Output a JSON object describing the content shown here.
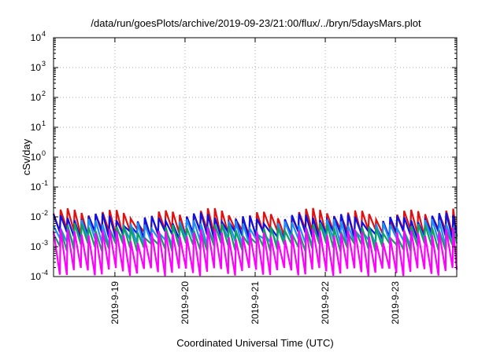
{
  "chart_data": {
    "type": "line",
    "title": "/data/run/goesPlots/archive/2019-09-23/21:00/flux/../bryn/5daysMars.plot",
    "xlabel": "Coordinated Universal Time (UTC)",
    "ylabel": "cSv/day",
    "x_range": [
      "2019-09-18T03:00",
      "2019-09-23T21:00"
    ],
    "x_ticks": [
      "2019-9-19",
      "2019-9-20",
      "2019-9-21",
      "2019-9-22",
      "2019-9-23"
    ],
    "y_scale": "log",
    "ylim": [
      0.0001,
      10000
    ],
    "y_ticks": [
      {
        "base": "10",
        "exp": "-4",
        "value": 0.0001
      },
      {
        "base": "10",
        "exp": "-3",
        "value": 0.001
      },
      {
        "base": "10",
        "exp": "-2",
        "value": 0.01
      },
      {
        "base": "10",
        "exp": "-1",
        "value": 0.1
      },
      {
        "base": "10",
        "exp": "0",
        "value": 1
      },
      {
        "base": "10",
        "exp": "1",
        "value": 10
      },
      {
        "base": "10",
        "exp": "2",
        "value": 100
      },
      {
        "base": "10",
        "exp": "3",
        "value": 1000
      },
      {
        "base": "10",
        "exp": "4",
        "value": 10000
      }
    ],
    "grid": true,
    "legend": "none",
    "sawtooth_period_hours": 2.4,
    "series": [
      {
        "color": "#e01010",
        "peak": 0.013,
        "trough": 0.003
      },
      {
        "color": "#1010e0",
        "peak": 0.009,
        "trough": 0.0025
      },
      {
        "color": "#2090f0",
        "peak": 0.0055,
        "trough": 0.0015
      },
      {
        "color": "#10a060",
        "peak": 0.004,
        "trough": 0.001
      },
      {
        "color": "#ff00ff",
        "peak": 0.0028,
        "trough": 0.00015
      }
    ]
  }
}
